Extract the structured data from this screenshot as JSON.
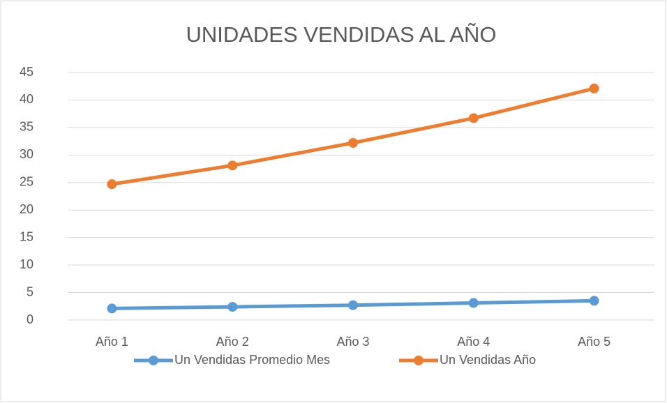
{
  "chart_data": {
    "type": "line",
    "title": "UNIDADES VENDIDAS AL AÑO",
    "categories": [
      "Año 1",
      "Año 2",
      "Año 3",
      "Año 4",
      "Año 5"
    ],
    "series": [
      {
        "name": "Un Vendidas Promedio Mes",
        "color": "#5b9bd5",
        "values": [
          2.1,
          2.4,
          2.7,
          3.1,
          3.5
        ]
      },
      {
        "name": "Un Vendidas Año",
        "color": "#ed7d31",
        "values": [
          24.7,
          28.1,
          32.2,
          36.7,
          42.1
        ]
      }
    ],
    "ylim": [
      0,
      45
    ],
    "yticks": [
      0,
      5,
      10,
      15,
      20,
      25,
      30,
      35,
      40,
      45
    ],
    "grid": true,
    "legend": "bottom"
  }
}
